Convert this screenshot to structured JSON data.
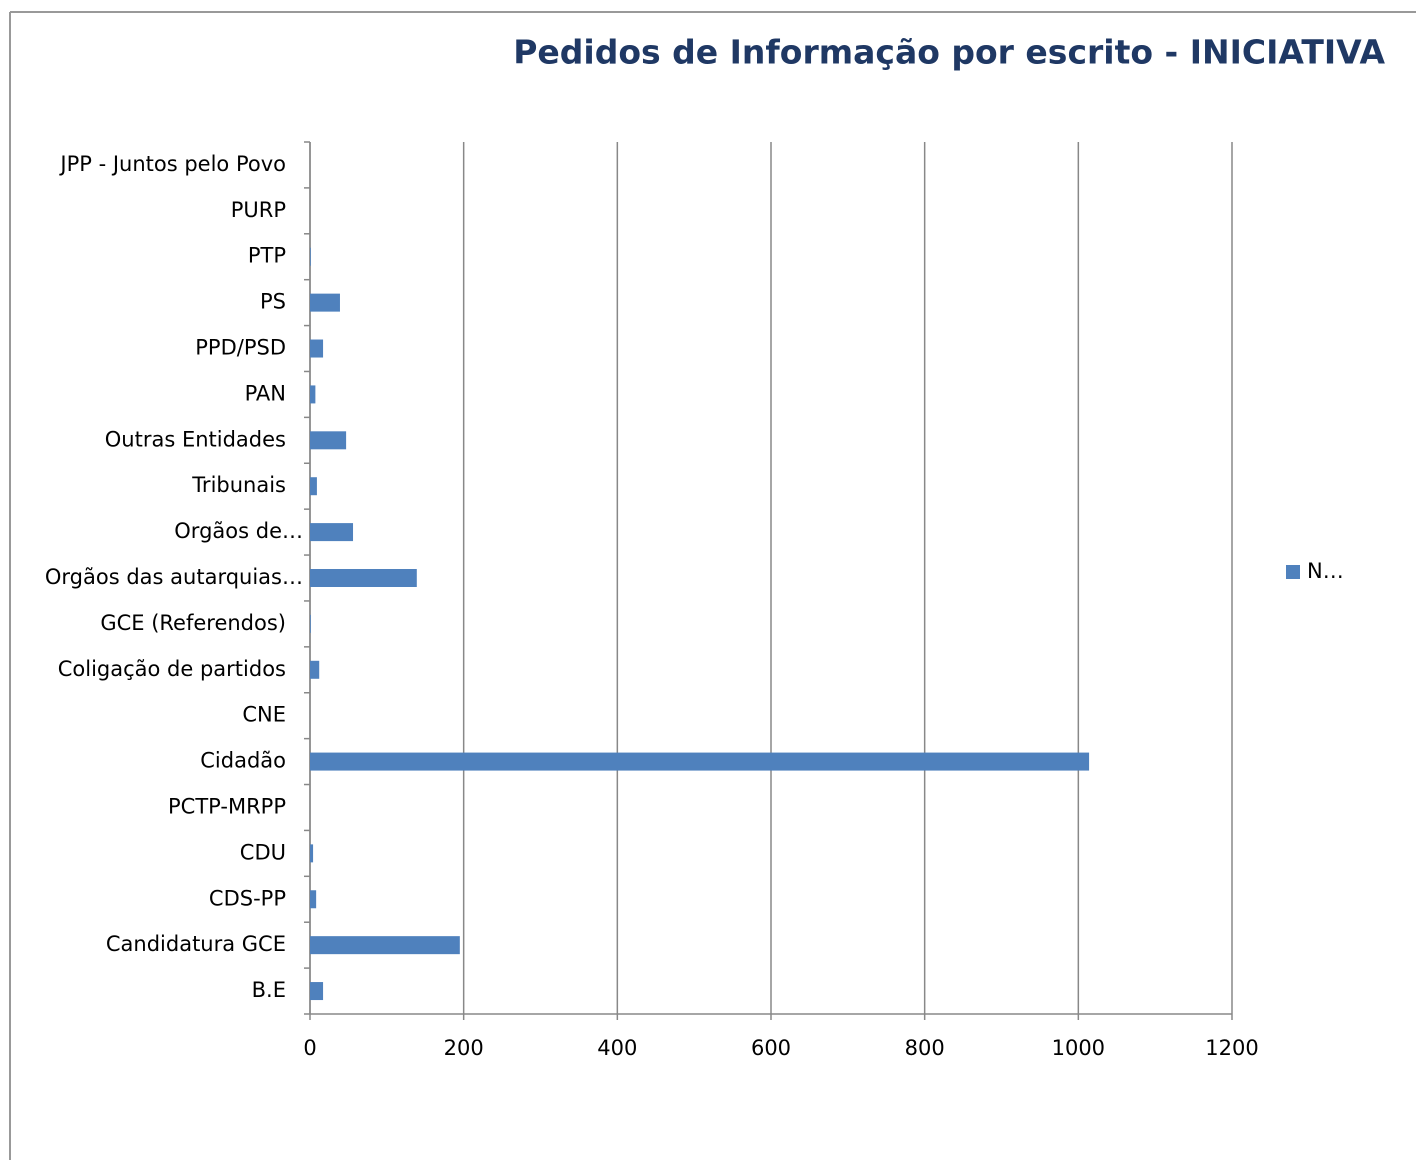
{
  "chart_data": {
    "type": "barh",
    "title": "Pedidos de Informação por escrito - INICIATIVA",
    "categories": [
      "B.E",
      "Candidatura GCE",
      "CDS-PP",
      "CDU",
      "PCTP-MRPP",
      "Cidadão",
      "CNE",
      "Coligação de partidos",
      "GCE (Referendos)",
      "Orgãos das autarquias…",
      "Orgãos de…",
      "Tribunais",
      "Outras Entidades",
      "PAN",
      "PPD/PSD",
      "PS",
      "PTP",
      "PURP",
      "JPP - Juntos pelo Povo"
    ],
    "series": [
      {
        "name": "N…",
        "color": "#4f81bd",
        "values": [
          17,
          195,
          8,
          4,
          0,
          1014,
          0,
          12,
          1,
          139,
          56,
          9,
          47,
          7,
          17,
          39,
          1,
          0,
          0
        ]
      }
    ],
    "xlim": [
      0,
      1200
    ],
    "xticks": [
      0,
      200,
      400,
      600,
      800,
      1000,
      1200
    ],
    "grid": true,
    "legend": "right"
  }
}
